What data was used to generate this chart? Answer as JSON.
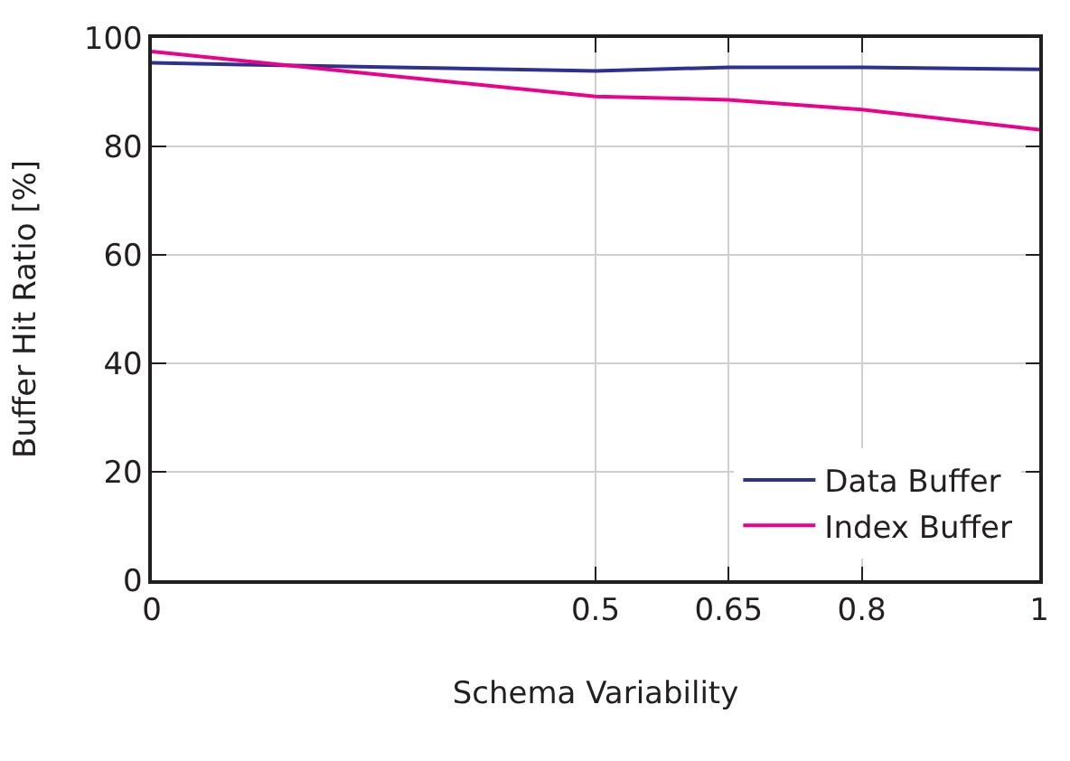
{
  "chart_data": {
    "type": "line",
    "xlabel": "Schema Variability",
    "ylabel": "Buffer Hit Ratio [%]",
    "x": [
      0,
      0.5,
      0.65,
      0.8,
      1
    ],
    "series": [
      {
        "name": "Data Buffer",
        "color": "#2e3192",
        "values": [
          95.4,
          93.9,
          94.6,
          94.6,
          94.2
        ]
      },
      {
        "name": "Index Buffer",
        "color": "#ec008c",
        "values": [
          97.5,
          89.2,
          88.6,
          86.8,
          83.1
        ]
      }
    ],
    "xlim": [
      0,
      1
    ],
    "xticks": [
      0,
      0.5,
      0.65,
      0.8,
      1
    ],
    "ylim": [
      0,
      100
    ],
    "yticks": [
      0,
      20,
      40,
      60,
      80,
      100
    ],
    "grid": true,
    "legend": "bottom right",
    "marker": "none",
    "line_style": "solid"
  }
}
